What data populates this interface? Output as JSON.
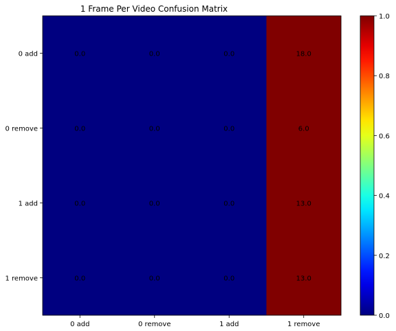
{
  "chart_data": {
    "type": "heatmap",
    "title": "1 Frame Per Video Confusion Matrix",
    "xlabel": "",
    "ylabel": "",
    "x_categories": [
      "0 add",
      "0 remove",
      "1 add",
      "1 remove"
    ],
    "y_categories": [
      "0 add",
      "0 remove",
      "1 add",
      "1 remove"
    ],
    "values": [
      [
        0.0,
        0.0,
        0.0,
        18.0
      ],
      [
        0.0,
        0.0,
        0.0,
        6.0
      ],
      [
        0.0,
        0.0,
        0.0,
        13.0
      ],
      [
        0.0,
        0.0,
        0.0,
        13.0
      ]
    ],
    "cell_labels": [
      [
        "0.0",
        "0.0",
        "0.0",
        "18.0"
      ],
      [
        "0.0",
        "0.0",
        "0.0",
        "6.0"
      ],
      [
        "0.0",
        "0.0",
        "0.0",
        "13.0"
      ],
      [
        "0.0",
        "0.0",
        "0.0",
        "13.0"
      ]
    ],
    "normalized": true,
    "colormap": "jet",
    "colorbar": {
      "range": [
        0.0,
        1.0
      ],
      "ticks": [
        "0.0",
        "0.2",
        "0.4",
        "0.6",
        "0.8",
        "1.0"
      ]
    }
  }
}
